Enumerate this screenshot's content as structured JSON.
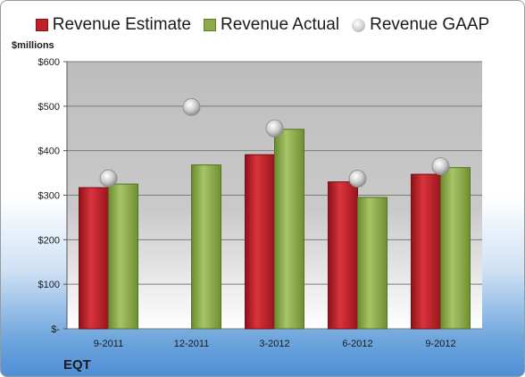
{
  "legend": {
    "estimate": "Revenue Estimate",
    "actual": "Revenue Actual",
    "gaap": "Revenue GAAP"
  },
  "unit_label": "$millions",
  "company": "EQT",
  "colors": {
    "estimate": "#c0202a",
    "actual": "#8aab45",
    "gaap": "#c4c4c4",
    "plot_top": "#bdbdbd",
    "plot_bottom": "#ffffff"
  },
  "chart_data": {
    "type": "bar",
    "categories": [
      "9-2011",
      "12-2011",
      "3-2012",
      "6-2012",
      "9-2012"
    ],
    "series": [
      {
        "name": "Revenue Estimate",
        "type": "bar",
        "values": [
          317,
          null,
          391,
          330,
          347
        ]
      },
      {
        "name": "Revenue Actual",
        "type": "bar",
        "values": [
          325,
          368,
          448,
          295,
          362
        ]
      },
      {
        "name": "Revenue GAAP",
        "type": "scatter",
        "values": [
          338,
          498,
          450,
          337,
          365
        ]
      }
    ],
    "ylabel": "$millions",
    "ylim": [
      0,
      600
    ],
    "yticks": [
      0,
      100,
      200,
      300,
      400,
      500,
      600
    ],
    "ytick_labels": [
      "$-",
      "$100",
      "$200",
      "$300",
      "$400",
      "$500",
      "$600"
    ],
    "grid": true,
    "legend_position": "top"
  }
}
